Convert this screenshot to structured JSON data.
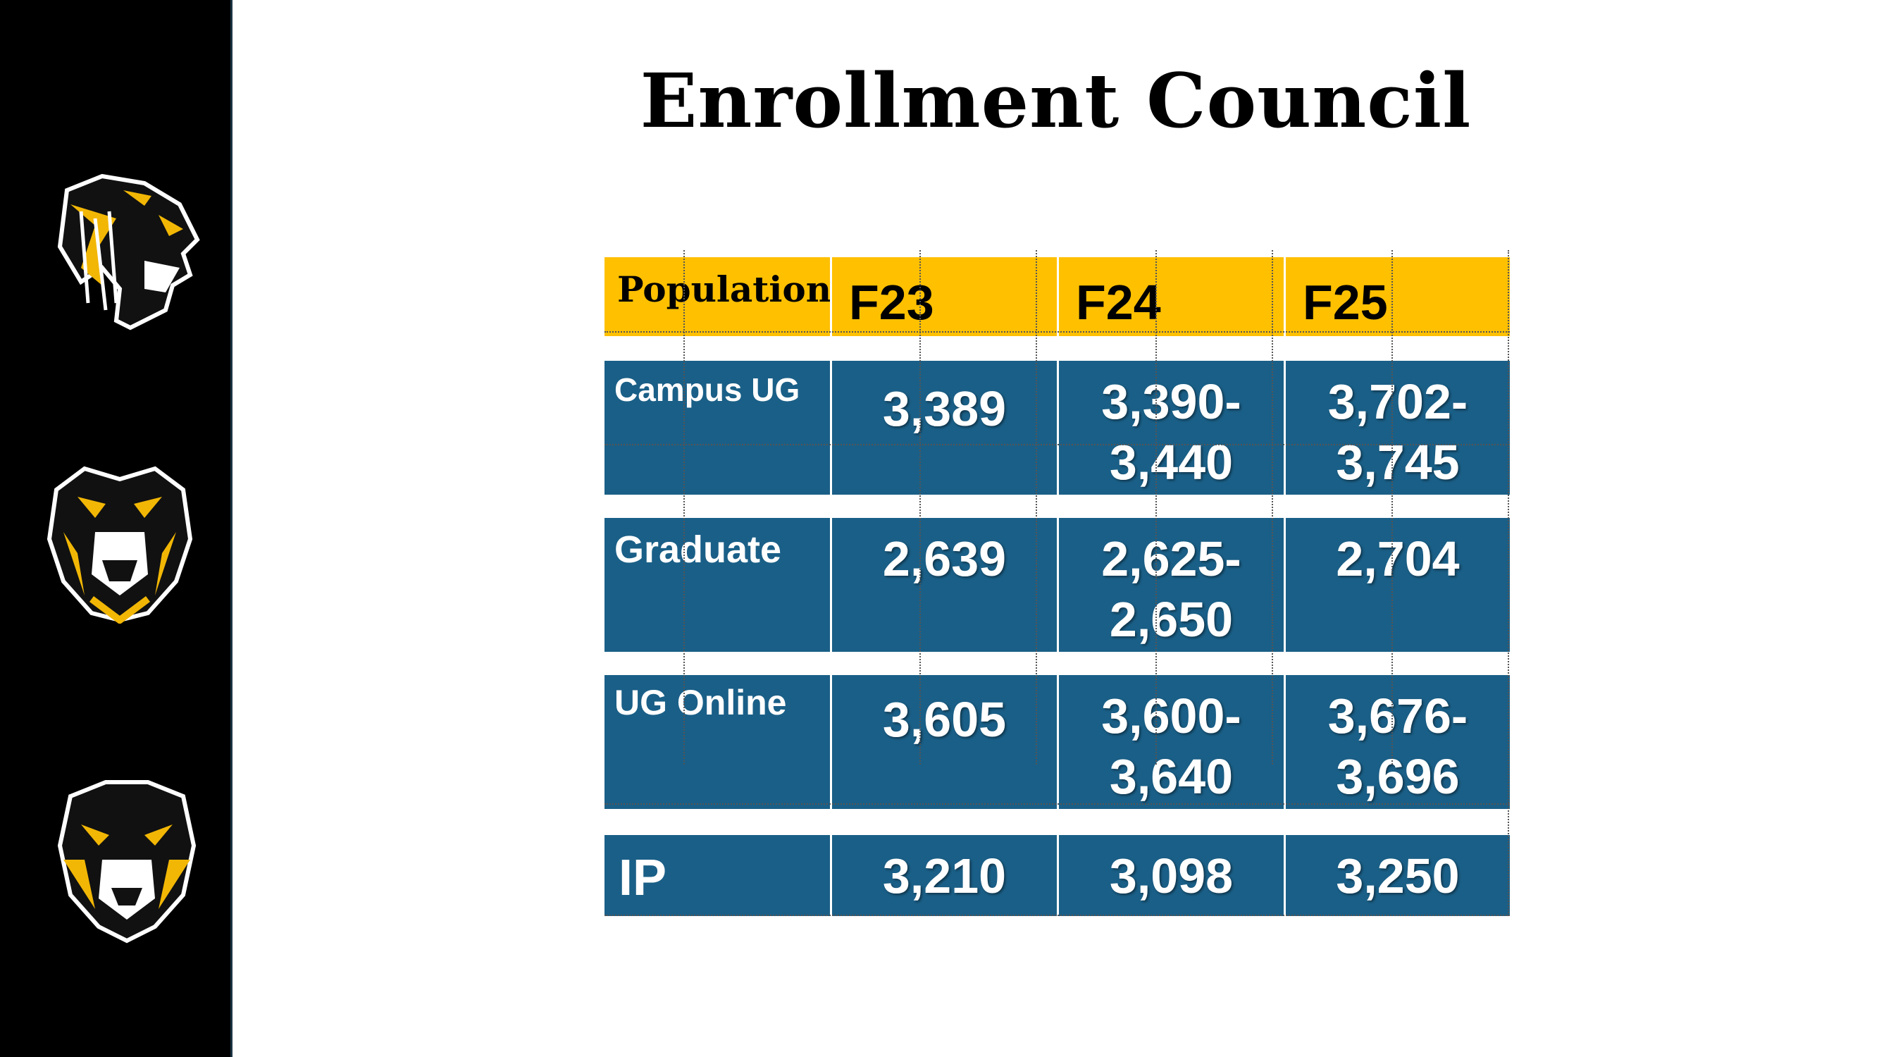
{
  "title": "Enrollment Council",
  "logos": [
    "tiger-profile-logo",
    "tiger-front-logo",
    "tiger-shield-logo"
  ],
  "colors": {
    "sidebar": "#000000",
    "header_bg": "#ffc000",
    "row_bg": "#1a5f87",
    "logo_gold": "#f2b705"
  },
  "table": {
    "header": {
      "population": "Population",
      "years": [
        "F23",
        "F24",
        "F25"
      ]
    },
    "rows": [
      {
        "label": "Campus UG",
        "values": [
          [
            "3,389"
          ],
          [
            "3,390-",
            "3,440"
          ],
          [
            "3,702-",
            "3,745"
          ]
        ]
      },
      {
        "label": "Graduate",
        "values": [
          [
            "2,639"
          ],
          [
            "2,625-",
            "2,650"
          ],
          [
            "2,704"
          ]
        ]
      },
      {
        "label": "UG Online",
        "values": [
          [
            "3,605"
          ],
          [
            "3,600-",
            "3,640"
          ],
          [
            "3,676-",
            "3,696"
          ]
        ]
      },
      {
        "label": "IP",
        "values": [
          [
            "3,210"
          ],
          [
            "3,098"
          ],
          [
            "3,250"
          ]
        ]
      }
    ]
  }
}
